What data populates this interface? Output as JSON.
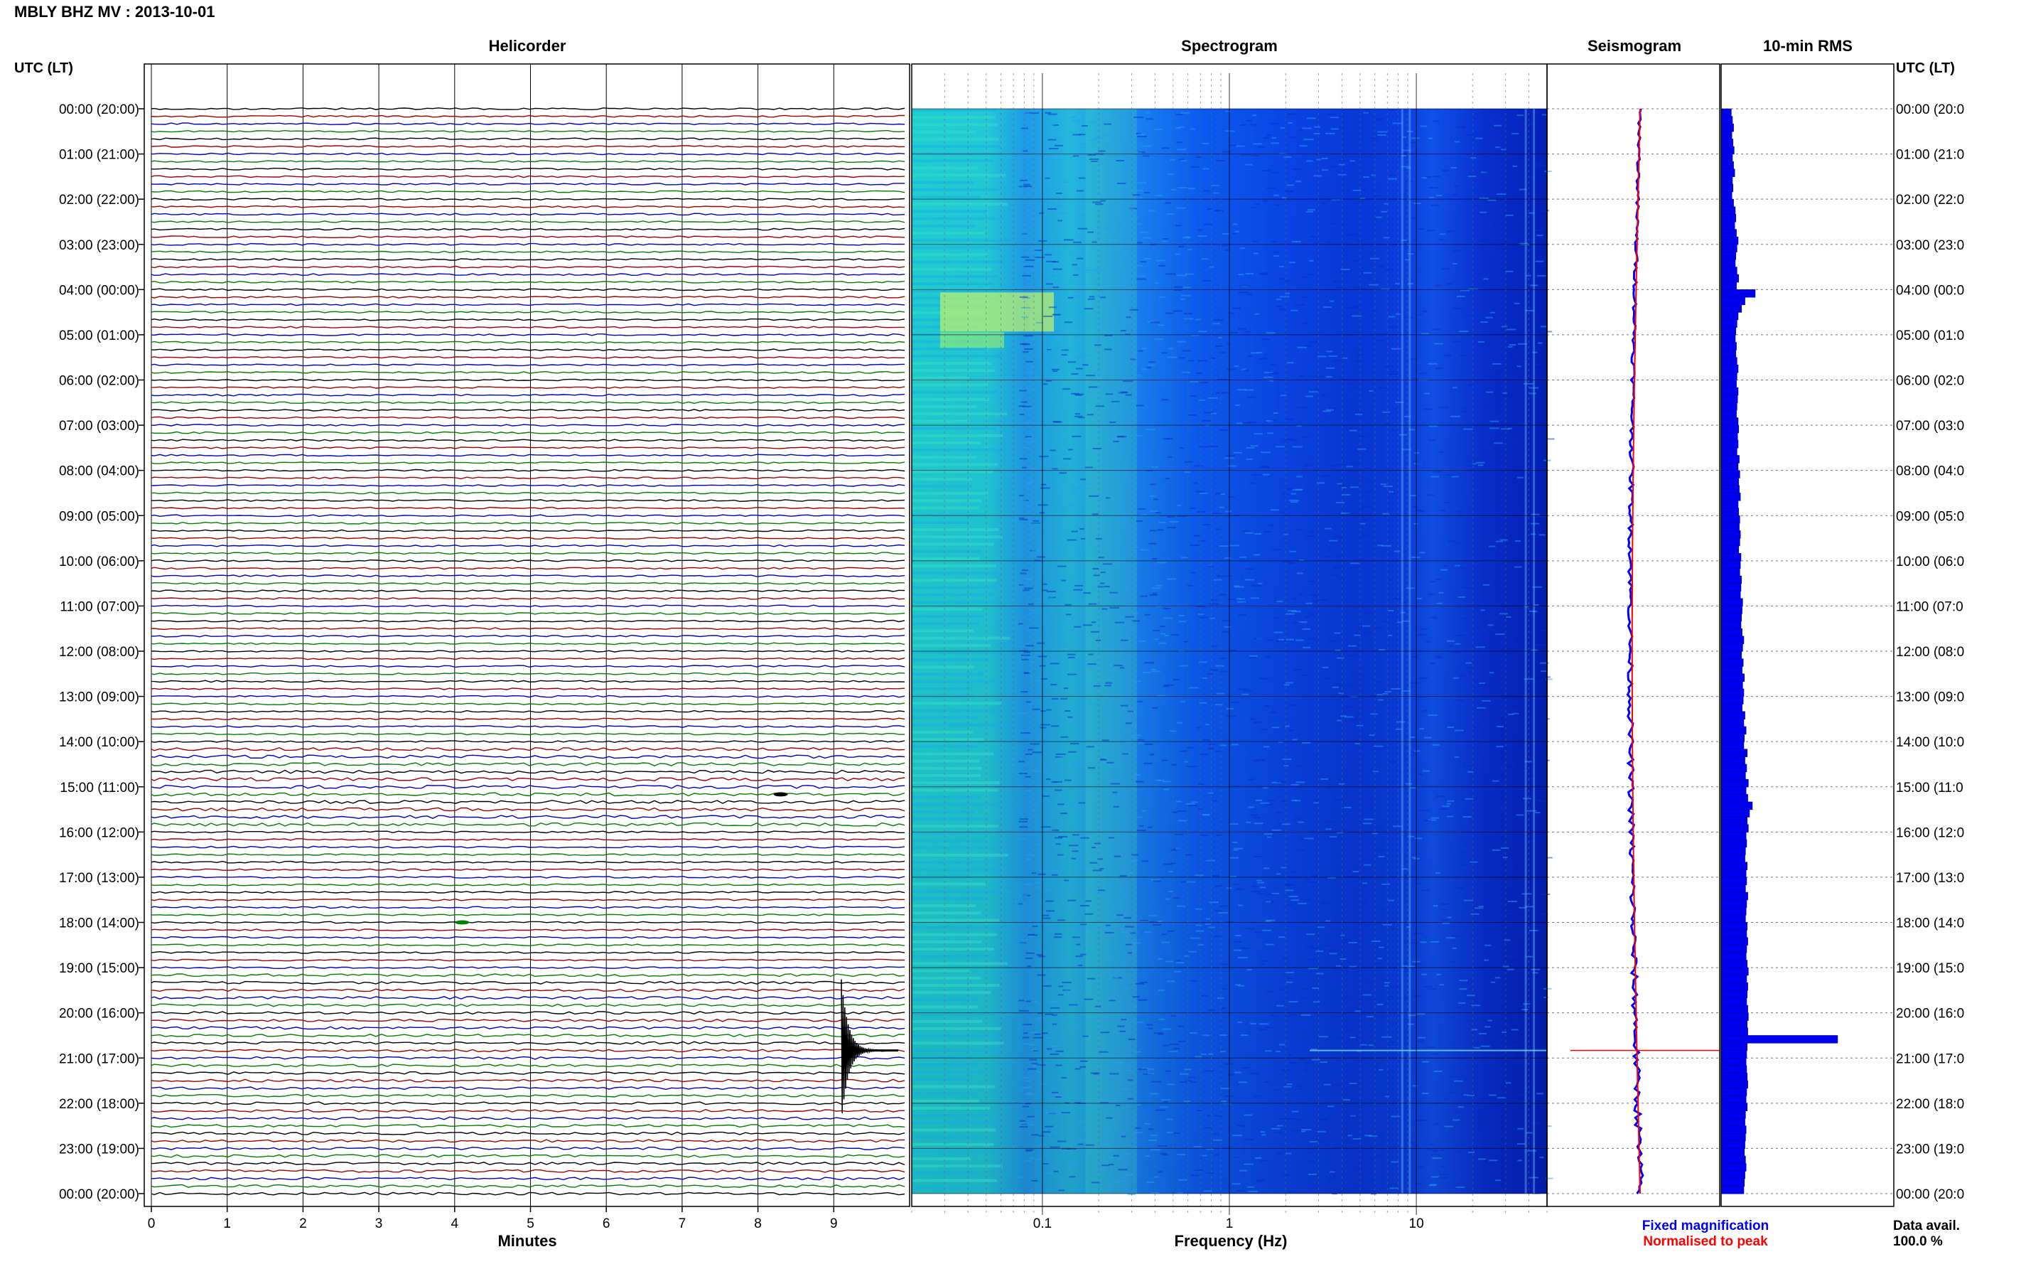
{
  "header": {
    "title": "MBLY BHZ MV : 2013-10-01"
  },
  "panels": {
    "helicorder": "Helicorder",
    "spectrogram": "Spectrogram",
    "seismogram": "Seismogram",
    "rms": "10-min RMS"
  },
  "axis_labels": {
    "left_time": "UTC (LT)",
    "right_time": "UTC (LT)",
    "minutes": "Minutes",
    "frequency": "Frequency (Hz)"
  },
  "legend": {
    "fixed": "Fixed magnification",
    "normalised": "Normalised to peak",
    "fixed_color": "#0000ff",
    "normalised_color": "#ff0000"
  },
  "data_avail": {
    "label": "Data avail.",
    "value": "100.0 %"
  },
  "time_ticks_left": [
    "00:00 (20:00)",
    "01:00 (21:00)",
    "02:00 (22:00)",
    "03:00 (23:00)",
    "04:00 (00:00)",
    "05:00 (01:00)",
    "06:00 (02:00)",
    "07:00 (03:00)",
    "08:00 (04:00)",
    "09:00 (05:00)",
    "10:00 (06:00)",
    "11:00 (07:00)",
    "12:00 (08:00)",
    "13:00 (09:00)",
    "14:00 (10:00)",
    "15:00 (11:00)",
    "16:00 (12:00)",
    "17:00 (13:00)",
    "18:00 (14:00)",
    "19:00 (15:00)",
    "20:00 (16:00)",
    "21:00 (17:00)",
    "22:00 (18:00)",
    "23:00 (19:00)",
    "00:00 (20:00)"
  ],
  "time_ticks_right": [
    "00:00 (20:0",
    "01:00 (21:0",
    "02:00 (22:0",
    "03:00 (23:0",
    "04:00 (00:0",
    "05:00 (01:0",
    "06:00 (02:0",
    "07:00 (03:0",
    "08:00 (04:0",
    "09:00 (05:0",
    "10:00 (06:0",
    "11:00 (07:0",
    "12:00 (08:0",
    "13:00 (09:0",
    "14:00 (10:0",
    "15:00 (11:0",
    "16:00 (12:0",
    "17:00 (13:0",
    "18:00 (14:0",
    "19:00 (15:0",
    "20:00 (16:0",
    "21:00 (17:0",
    "22:00 (18:0",
    "23:00 (19:0",
    "00:00 (20:0"
  ],
  "chart_data": {
    "type": "heatmap",
    "helicorder": {
      "minute_ticks": [
        "0",
        "1",
        "2",
        "3",
        "4",
        "5",
        "6",
        "7",
        "8",
        "9"
      ],
      "xlim": [
        0,
        10
      ],
      "trace_colors": [
        "#000000",
        "#a00000",
        "#0000c0",
        "#008000"
      ],
      "traces_per_hour": 6,
      "events": [
        {
          "utc": "20:50",
          "minute": 9.1,
          "note": "large transient"
        },
        {
          "utc": "18:00",
          "minute": 4.1
        },
        {
          "utc": "15:10",
          "minute": 8.3
        }
      ]
    },
    "spectrogram": {
      "x_scale": "log",
      "xlim": [
        0.02,
        50
      ],
      "tick_labels": [
        "0.1",
        "1",
        "10"
      ],
      "tick_values": [
        0.1,
        1,
        10
      ]
    },
    "seismogram": {
      "series": [
        {
          "name": "Fixed magnification",
          "color": "#0000ff"
        },
        {
          "name": "Normalised to peak",
          "color": "#ff0000"
        }
      ]
    },
    "rms": {
      "ylim_hours": [
        0,
        24
      ],
      "bars_relative": [
        0.18,
        0.2,
        0.22,
        0.19,
        0.21,
        0.23,
        0.2,
        0.22,
        0.24,
        0.2,
        0.21,
        0.19,
        0.22,
        0.25,
        0.26,
        0.24,
        0.27,
        0.3,
        0.28,
        0.26,
        0.25,
        0.28,
        0.31,
        0.27,
        0.6,
        0.42,
        0.36,
        0.3,
        0.28,
        0.26,
        0.25,
        0.27,
        0.26,
        0.28,
        0.3,
        0.28,
        0.27,
        0.3,
        0.29,
        0.28,
        0.27,
        0.3,
        0.31,
        0.29,
        0.3,
        0.28,
        0.32,
        0.3,
        0.33,
        0.31,
        0.32,
        0.34,
        0.3,
        0.31,
        0.33,
        0.32,
        0.34,
        0.33,
        0.31,
        0.35,
        0.34,
        0.33,
        0.36,
        0.35,
        0.34,
        0.38,
        0.37,
        0.36,
        0.35,
        0.37,
        0.4,
        0.38,
        0.36,
        0.39,
        0.37,
        0.41,
        0.38,
        0.4,
        0.39,
        0.37,
        0.42,
        0.4,
        0.44,
        0.41,
        0.4,
        0.46,
        0.42,
        0.45,
        0.43,
        0.48,
        0.44,
        0.47,
        0.55,
        0.5,
        0.46,
        0.48,
        0.44,
        0.45,
        0.43,
        0.42,
        0.46,
        0.44,
        0.45,
        0.43,
        0.47,
        0.45,
        0.44,
        0.43,
        0.46,
        0.45,
        0.47,
        0.45,
        0.44,
        0.46,
        0.48,
        0.45,
        0.47,
        0.46,
        0.45,
        0.47,
        0.48,
        0.46,
        0.47,
        2.05,
        0.46,
        0.45,
        0.44,
        0.45,
        0.46,
        0.47,
        0.45,
        0.44,
        0.46,
        0.43,
        0.42,
        0.44,
        0.43,
        0.42,
        0.41,
        0.43,
        0.44,
        0.42,
        0.41,
        0.4
      ]
    }
  }
}
